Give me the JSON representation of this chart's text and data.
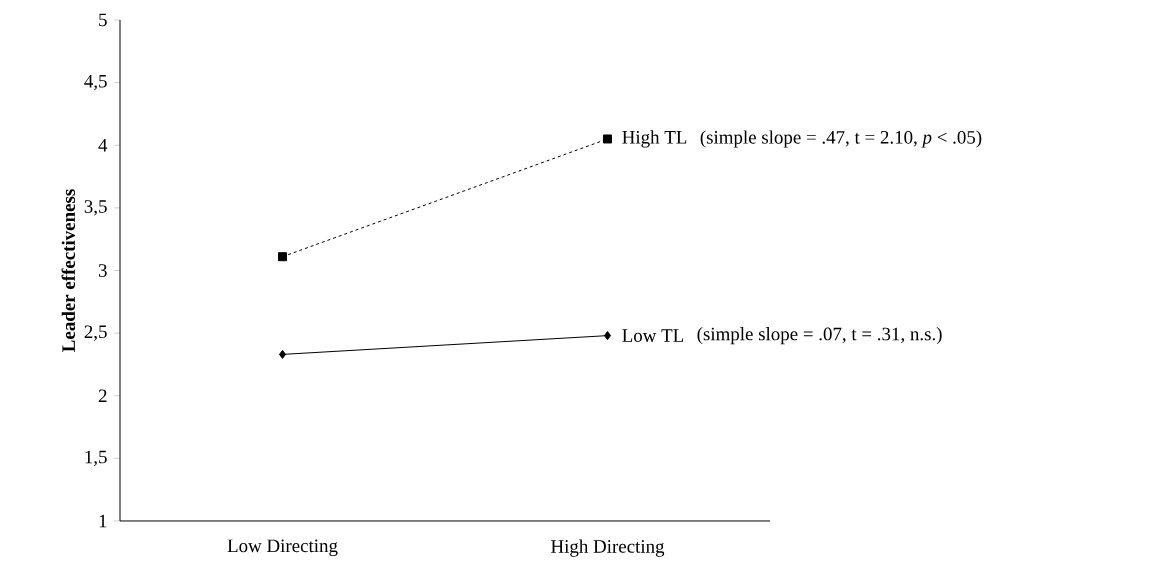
{
  "chart_data": {
    "type": "line",
    "ylabel": "Leader effectiveness",
    "categories": [
      "Low Directing",
      "High Directing"
    ],
    "series": [
      {
        "name": "High TL",
        "color": "#000000",
        "values": [
          3.11,
          4.05
        ],
        "marker": "square",
        "line_style": "dashed"
      },
      {
        "name": "Low TL",
        "color": "#000000",
        "values": [
          2.33,
          2.48
        ],
        "marker": "diamond",
        "line_style": "solid"
      }
    ],
    "annotations": [
      "(simple slope = .47, t = 2.10, *p* < .05)",
      "(simple slope = .07, t = .31, n.s.)"
    ],
    "ylim": [
      1,
      5
    ],
    "yticks": [
      1,
      {
        "value": 1.5,
        "label": "1,5"
      },
      2,
      {
        "value": 2.5,
        "label": "2,5"
      },
      3,
      {
        "value": 3.5,
        "label": "3,5"
      },
      4,
      {
        "value": 4.5,
        "label": "4,5"
      },
      5
    ],
    "grid": false,
    "legend": false
  }
}
